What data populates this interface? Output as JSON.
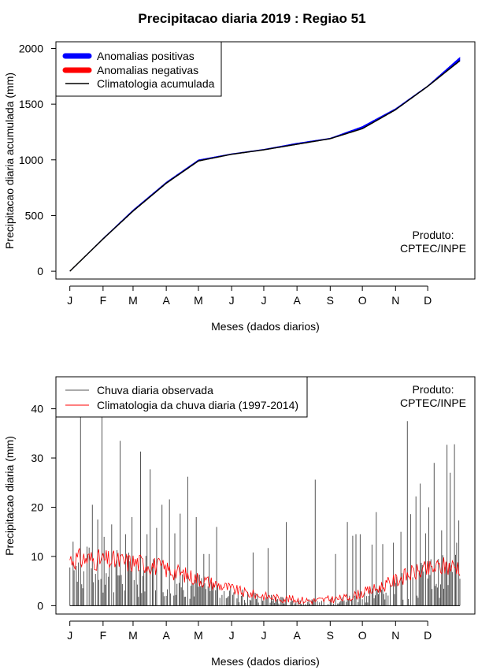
{
  "title": "Precipitacao diaria 2019 : Regiao 51",
  "credit": {
    "line1": "Produto:",
    "line2": "CPTEC/INPE"
  },
  "months": [
    "J",
    "F",
    "M",
    "A",
    "M",
    "J",
    "J",
    "A",
    "S",
    "O",
    "N",
    "D"
  ],
  "month_days": [
    1,
    32,
    60,
    91,
    121,
    152,
    182,
    213,
    244,
    274,
    305,
    335
  ],
  "chart_data": [
    {
      "type": "line",
      "title": "Precipitacao diaria 2019 : Regiao 51",
      "xlabel": "Meses (dados diarios)",
      "ylabel": "Precipitacao diaria acumulada (mm)",
      "xlim": [
        1,
        365
      ],
      "ylim": [
        0,
        2000
      ],
      "yticks": [
        0,
        500,
        1000,
        1500,
        2000
      ],
      "legend": [
        {
          "label": "Anomalias positivas",
          "color": "#0000ff"
        },
        {
          "label": "Anomalias negativas",
          "color": "#ff0000"
        },
        {
          "label": "Climatologia acumulada",
          "color": "#000000"
        }
      ],
      "legend_position": "top-left",
      "climatology_cumulative_monthly": {
        "day": [
          1,
          32,
          60,
          91,
          121,
          152,
          182,
          213,
          244,
          274,
          305,
          335,
          365
        ],
        "value": [
          0,
          290,
          540,
          790,
          990,
          1050,
          1090,
          1140,
          1190,
          1280,
          1450,
          1660,
          1890
        ]
      },
      "observed_cumulative_monthly": {
        "day": [
          1,
          32,
          60,
          91,
          121,
          152,
          182,
          213,
          244,
          274,
          305,
          335,
          365
        ],
        "value": [
          0,
          295,
          550,
          800,
          1000,
          1055,
          1095,
          1150,
          1195,
          1300,
          1460,
          1665,
          1920
        ]
      }
    },
    {
      "type": "bar",
      "xlabel": "Meses (dados diarios)",
      "ylabel": "Precipitacao diaria (mm)",
      "xlim": [
        1,
        365
      ],
      "ylim": [
        0,
        45
      ],
      "yticks": [
        0,
        10,
        20,
        30,
        40
      ],
      "legend": [
        {
          "label": "Chuva diaria observada",
          "color": "#555555"
        },
        {
          "label": "Climatologia da chuva diaria (1997-2014)",
          "color": "#ff0000"
        }
      ],
      "legend_position": "top-left",
      "observed_daily_peaks": {
        "day": [
          4,
          11,
          22,
          27,
          31,
          33,
          40,
          48,
          53,
          59,
          67,
          73,
          76,
          82,
          87,
          94,
          99,
          104,
          111,
          119,
          126,
          131,
          138,
          172,
          186,
          203,
          230,
          249,
          260,
          265,
          268,
          272,
          283,
          287,
          293,
          303,
          310,
          316,
          319,
          324,
          328,
          333,
          336,
          341,
          348,
          353,
          356,
          360,
          362,
          364
        ],
        "value": [
          13,
          40,
          20.5,
          17.5,
          40,
          14,
          16.5,
          33.5,
          14.5,
          18,
          31.3,
          14.5,
          27.7,
          15.8,
          20.5,
          21.6,
          14.7,
          18.7,
          26.2,
          18,
          10.5,
          10.5,
          16,
          10.8,
          11.7,
          17,
          25.6,
          10.5,
          17,
          14.2,
          14.5,
          14.5,
          12.4,
          19,
          12.5,
          12.8,
          15,
          37.5,
          18.6,
          22.2,
          24.8,
          14.7,
          20,
          29,
          15.3,
          32.7,
          27,
          32.8,
          12.8,
          17.3
        ]
      },
      "climatology_daily_monthly_mean": {
        "day": [
          15,
          46,
          74,
          105,
          135,
          166,
          196,
          227,
          258,
          288,
          319,
          349
        ],
        "value": [
          9.5,
          9.0,
          8.5,
          6.5,
          4.5,
          2.5,
          1.5,
          1.0,
          1.5,
          3.5,
          6.5,
          8.0
        ]
      }
    }
  ]
}
